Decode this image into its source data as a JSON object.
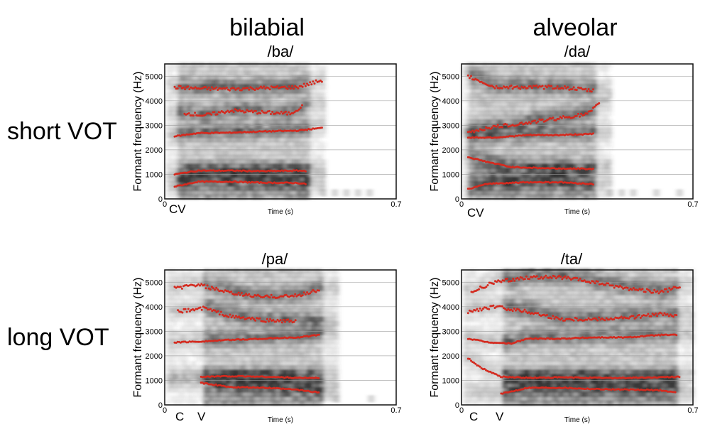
{
  "headers": {
    "left": "bilabial",
    "right": "alveolar"
  },
  "rows": {
    "top": "short VOT",
    "bottom": "long VOT"
  },
  "y_axis": {
    "label": "Formant frequency (Hz)",
    "ticks": [
      "0",
      "1000",
      "2000",
      "3000",
      "4000",
      "5000"
    ]
  },
  "x_axis": {
    "label": "Time (s)",
    "start": "0",
    "end": "0.7"
  },
  "colors": {
    "formant": "#d42a1f",
    "ink": "#111111",
    "grid": "#9a9a9a"
  },
  "chart_data": [
    {
      "type": "scatter",
      "title": "/ba/",
      "xlim": [
        0,
        0.7
      ],
      "ylim": [
        0,
        5500
      ],
      "markers": [
        "CV"
      ],
      "marker_times": [
        0.02
      ],
      "voicing_onset": 0.03,
      "vowel_end": 0.43,
      "series": [
        {
          "points": [
            [
              0.03,
              500
            ],
            [
              0.1,
              700
            ],
            [
              0.2,
              700
            ],
            [
              0.3,
              660
            ],
            [
              0.4,
              650
            ],
            [
              0.43,
              600
            ]
          ]
        },
        {
          "points": [
            [
              0.03,
              1000
            ],
            [
              0.1,
              1150
            ],
            [
              0.2,
              1150
            ],
            [
              0.3,
              1130
            ],
            [
              0.4,
              1150
            ],
            [
              0.43,
              1140
            ]
          ]
        },
        {
          "points": [
            [
              0.03,
              2550
            ],
            [
              0.1,
              2680
            ],
            [
              0.2,
              2700
            ],
            [
              0.3,
              2750
            ],
            [
              0.4,
              2780
            ],
            [
              0.48,
              2900
            ]
          ]
        },
        {
          "points": [
            [
              0.06,
              3500
            ],
            [
              0.12,
              3400
            ],
            [
              0.2,
              3600
            ],
            [
              0.3,
              3520
            ],
            [
              0.38,
              3480
            ],
            [
              0.42,
              3800
            ]
          ]
        },
        {
          "points": [
            [
              0.03,
              4550
            ],
            [
              0.1,
              4500
            ],
            [
              0.2,
              4480
            ],
            [
              0.3,
              4520
            ],
            [
              0.4,
              4550
            ],
            [
              0.48,
              4850
            ]
          ]
        }
      ]
    },
    {
      "type": "scatter",
      "title": "/da/",
      "xlim": [
        0,
        0.7
      ],
      "ylim": [
        0,
        5500
      ],
      "markers": [
        "CV"
      ],
      "marker_times": [
        0.02
      ],
      "voicing_onset": 0.02,
      "vowel_end": 0.4,
      "series": [
        {
          "points": [
            [
              0.02,
              400
            ],
            [
              0.08,
              620
            ],
            [
              0.2,
              680
            ],
            [
              0.3,
              680
            ],
            [
              0.4,
              600
            ]
          ]
        },
        {
          "points": [
            [
              0.02,
              1700
            ],
            [
              0.08,
              1500
            ],
            [
              0.15,
              1300
            ],
            [
              0.25,
              1250
            ],
            [
              0.4,
              1220
            ]
          ]
        },
        {
          "points": [
            [
              0.02,
              2500
            ],
            [
              0.1,
              2500
            ],
            [
              0.2,
              2600
            ],
            [
              0.3,
              2600
            ],
            [
              0.4,
              2650
            ]
          ]
        },
        {
          "points": [
            [
              0.02,
              2700
            ],
            [
              0.08,
              2900
            ],
            [
              0.2,
              3100
            ],
            [
              0.3,
              3300
            ],
            [
              0.38,
              3450
            ],
            [
              0.42,
              3900
            ]
          ]
        },
        {
          "points": [
            [
              0.02,
              5000
            ],
            [
              0.1,
              4550
            ],
            [
              0.2,
              4550
            ],
            [
              0.3,
              4550
            ],
            [
              0.4,
              4400
            ]
          ]
        }
      ]
    },
    {
      "type": "scatter",
      "title": "/pa/",
      "xlim": [
        0,
        0.7
      ],
      "ylim": [
        0,
        5500
      ],
      "markers": [
        "C",
        "V"
      ],
      "marker_times": [
        0.05,
        0.12
      ],
      "voicing_onset": 0.11,
      "vowel_end": 0.47,
      "series": [
        {
          "points": [
            [
              0.11,
              900
            ],
            [
              0.2,
              720
            ],
            [
              0.3,
              700
            ],
            [
              0.4,
              620
            ],
            [
              0.47,
              500
            ]
          ]
        },
        {
          "points": [
            [
              0.11,
              1150
            ],
            [
              0.2,
              1170
            ],
            [
              0.3,
              1150
            ],
            [
              0.4,
              1100
            ],
            [
              0.47,
              1100
            ]
          ]
        },
        {
          "points": [
            [
              0.03,
              2550
            ],
            [
              0.1,
              2580
            ],
            [
              0.2,
              2650
            ],
            [
              0.3,
              2700
            ],
            [
              0.4,
              2750
            ],
            [
              0.47,
              2850
            ]
          ]
        },
        {
          "points": [
            [
              0.04,
              3800
            ],
            [
              0.12,
              3950
            ],
            [
              0.2,
              3600
            ],
            [
              0.3,
              3450
            ],
            [
              0.4,
              3400
            ]
          ]
        },
        {
          "points": [
            [
              0.03,
              4750
            ],
            [
              0.1,
              4900
            ],
            [
              0.2,
              4550
            ],
            [
              0.3,
              4400
            ],
            [
              0.4,
              4450
            ],
            [
              0.47,
              4700
            ]
          ]
        }
      ]
    },
    {
      "type": "scatter",
      "title": "/ta/",
      "xlim": [
        0,
        0.7
      ],
      "ylim": [
        0,
        5500
      ],
      "markers": [
        "C",
        "V"
      ],
      "marker_times": [
        0.05,
        0.13
      ],
      "voicing_onset": 0.12,
      "vowel_end": 0.65,
      "series": [
        {
          "points": [
            [
              0.12,
              450
            ],
            [
              0.2,
              700
            ],
            [
              0.3,
              700
            ],
            [
              0.4,
              650
            ],
            [
              0.5,
              620
            ],
            [
              0.6,
              600
            ],
            [
              0.65,
              500
            ]
          ]
        },
        {
          "points": [
            [
              0.02,
              1900
            ],
            [
              0.06,
              1500
            ],
            [
              0.12,
              1150
            ],
            [
              0.2,
              1100
            ],
            [
              0.3,
              1120
            ],
            [
              0.4,
              1100
            ],
            [
              0.5,
              1100
            ],
            [
              0.6,
              1120
            ],
            [
              0.66,
              1150
            ]
          ]
        },
        {
          "points": [
            [
              0.02,
              2700
            ],
            [
              0.08,
              2550
            ],
            [
              0.15,
              2500
            ],
            [
              0.2,
              2700
            ],
            [
              0.3,
              2700
            ],
            [
              0.4,
              2750
            ],
            [
              0.5,
              2750
            ],
            [
              0.6,
              2850
            ],
            [
              0.65,
              2850
            ]
          ]
        },
        {
          "points": [
            [
              0.02,
              3800
            ],
            [
              0.1,
              4000
            ],
            [
              0.2,
              3800
            ],
            [
              0.3,
              3500
            ],
            [
              0.4,
              3500
            ],
            [
              0.5,
              3550
            ],
            [
              0.6,
              3700
            ],
            [
              0.65,
              3600
            ]
          ]
        },
        {
          "points": [
            [
              0.03,
              4600
            ],
            [
              0.1,
              5000
            ],
            [
              0.2,
              5200
            ],
            [
              0.3,
              5200
            ],
            [
              0.4,
              5000
            ],
            [
              0.5,
              4750
            ],
            [
              0.6,
              4600
            ],
            [
              0.66,
              4800
            ]
          ]
        }
      ]
    }
  ]
}
